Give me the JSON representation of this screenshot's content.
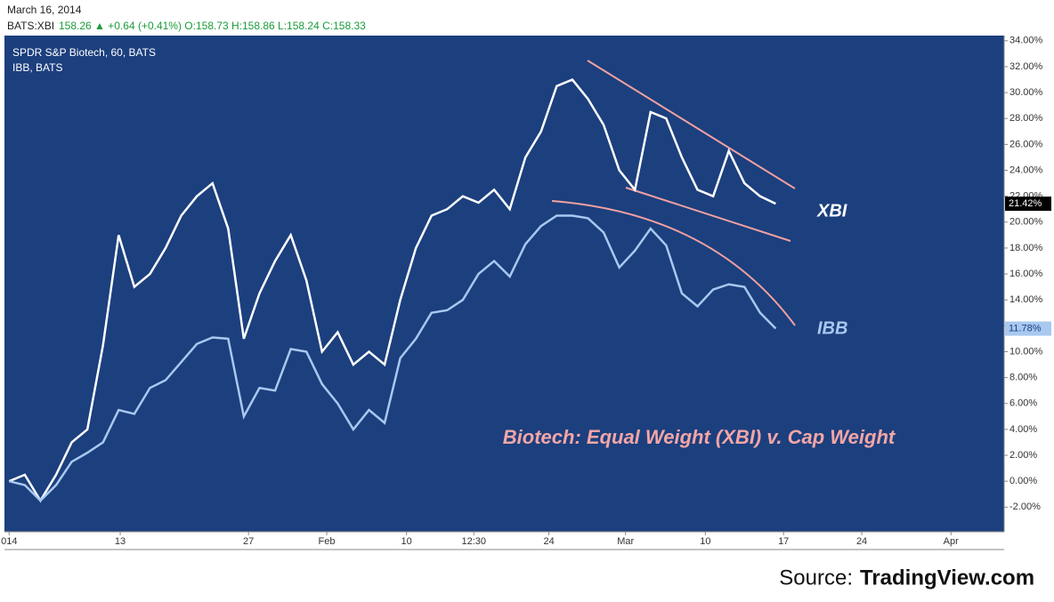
{
  "chart_data": {
    "type": "line",
    "header": {
      "date": "March 16, 2014",
      "symbol": "BATS:XBI",
      "quote": "158.26 ▲ +0.64 (+0.41%) O:158.73 H:158.86 L:158.24 C:158.33"
    },
    "legend": [
      "SPDR S&P Biotech, 60, BATS",
      "IBB, BATS"
    ],
    "annotations": {
      "xbi": "XBI",
      "ibb": "IBB",
      "title": "Biotech: Equal Weight (XBI) v. Cap Weight",
      "source": "Source:",
      "source_name": "TradingView.com"
    },
    "x": [
      0,
      1,
      2,
      3,
      4,
      5,
      6,
      7,
      8,
      9,
      10,
      11,
      12,
      13,
      14,
      15,
      16,
      17,
      18,
      19,
      20,
      21,
      22,
      23,
      24,
      25,
      26,
      27,
      28,
      29,
      30,
      31,
      32,
      33,
      34,
      35,
      36,
      37,
      38,
      39,
      40,
      41,
      42,
      43,
      44,
      45,
      46,
      47,
      48,
      49
    ],
    "series": [
      {
        "name": "XBI",
        "color": "#ffffff",
        "last_label": "21.42%",
        "values": [
          0.0,
          0.5,
          -1.5,
          0.5,
          3.0,
          4.0,
          10.5,
          19.0,
          15.0,
          16.0,
          18.0,
          20.5,
          22.0,
          23.0,
          19.5,
          11.0,
          14.5,
          17.0,
          19.0,
          15.5,
          10.0,
          11.5,
          9.0,
          10.0,
          9.0,
          14.0,
          18.0,
          20.5,
          21.0,
          22.0,
          21.5,
          22.5,
          21.0,
          25.0,
          27.0,
          30.5,
          31.0,
          29.5,
          27.5,
          24.0,
          22.5,
          28.5,
          28.0,
          25.0,
          22.5,
          22.0,
          25.5,
          23.0,
          22.0,
          21.42
        ]
      },
      {
        "name": "IBB",
        "color": "#a8c8f0",
        "last_label": "11.78%",
        "values": [
          0.0,
          -0.3,
          -1.5,
          -0.3,
          1.5,
          2.2,
          3.0,
          5.5,
          5.2,
          7.2,
          7.8,
          9.2,
          10.6,
          11.1,
          11.0,
          5.0,
          7.2,
          7.0,
          10.2,
          10.0,
          7.5,
          6.0,
          4.0,
          5.5,
          4.5,
          9.5,
          11.0,
          13.0,
          13.2,
          14.0,
          16.0,
          17.0,
          15.8,
          18.3,
          19.7,
          20.5,
          20.5,
          20.3,
          19.2,
          16.5,
          17.8,
          19.5,
          18.2,
          14.5,
          13.5,
          14.8,
          15.2,
          15.0,
          13.0,
          11.78
        ]
      }
    ],
    "xlim": [
      -0.3,
      63.6
    ],
    "xticks": [
      {
        "value": 0,
        "label": "014"
      },
      {
        "value": 7.1,
        "label": "13"
      },
      {
        "value": 15.3,
        "label": "27"
      },
      {
        "value": 20.3,
        "label": "Feb"
      },
      {
        "value": 25.4,
        "label": "10"
      },
      {
        "value": 29.7,
        "label": "12:30"
      },
      {
        "value": 34.5,
        "label": "24"
      },
      {
        "value": 39.4,
        "label": "Mar"
      },
      {
        "value": 44.5,
        "label": "10"
      },
      {
        "value": 49.5,
        "label": "17"
      },
      {
        "value": 54.5,
        "label": "24"
      },
      {
        "value": 60.2,
        "label": "Apr"
      }
    ],
    "ylim": [
      -3.9,
      34.4
    ],
    "yticks": [
      {
        "value": -2,
        "label": "-2.00%"
      },
      {
        "value": 0,
        "label": "0.00%"
      },
      {
        "value": 2,
        "label": "2.00%"
      },
      {
        "value": 4,
        "label": "4.00%"
      },
      {
        "value": 6,
        "label": "6.00%"
      },
      {
        "value": 8,
        "label": "8.00%"
      },
      {
        "value": 10,
        "label": "10.00%"
      },
      {
        "value": 12,
        "label": "12.00%"
      },
      {
        "value": 14,
        "label": "14.00%"
      },
      {
        "value": 16,
        "label": "16.00%"
      },
      {
        "value": 18,
        "label": "18.00%"
      },
      {
        "value": 20,
        "label": "20.00%"
      },
      {
        "value": 22,
        "label": "22.00%"
      },
      {
        "value": 24,
        "label": "24.00%"
      },
      {
        "value": 26,
        "label": "26.00%"
      },
      {
        "value": 28,
        "label": "28.00%"
      },
      {
        "value": 30,
        "label": "30.00%"
      },
      {
        "value": 32,
        "label": "32.00%"
      },
      {
        "value": 34,
        "label": "34.00%"
      }
    ],
    "background": "#1c3f7e"
  }
}
